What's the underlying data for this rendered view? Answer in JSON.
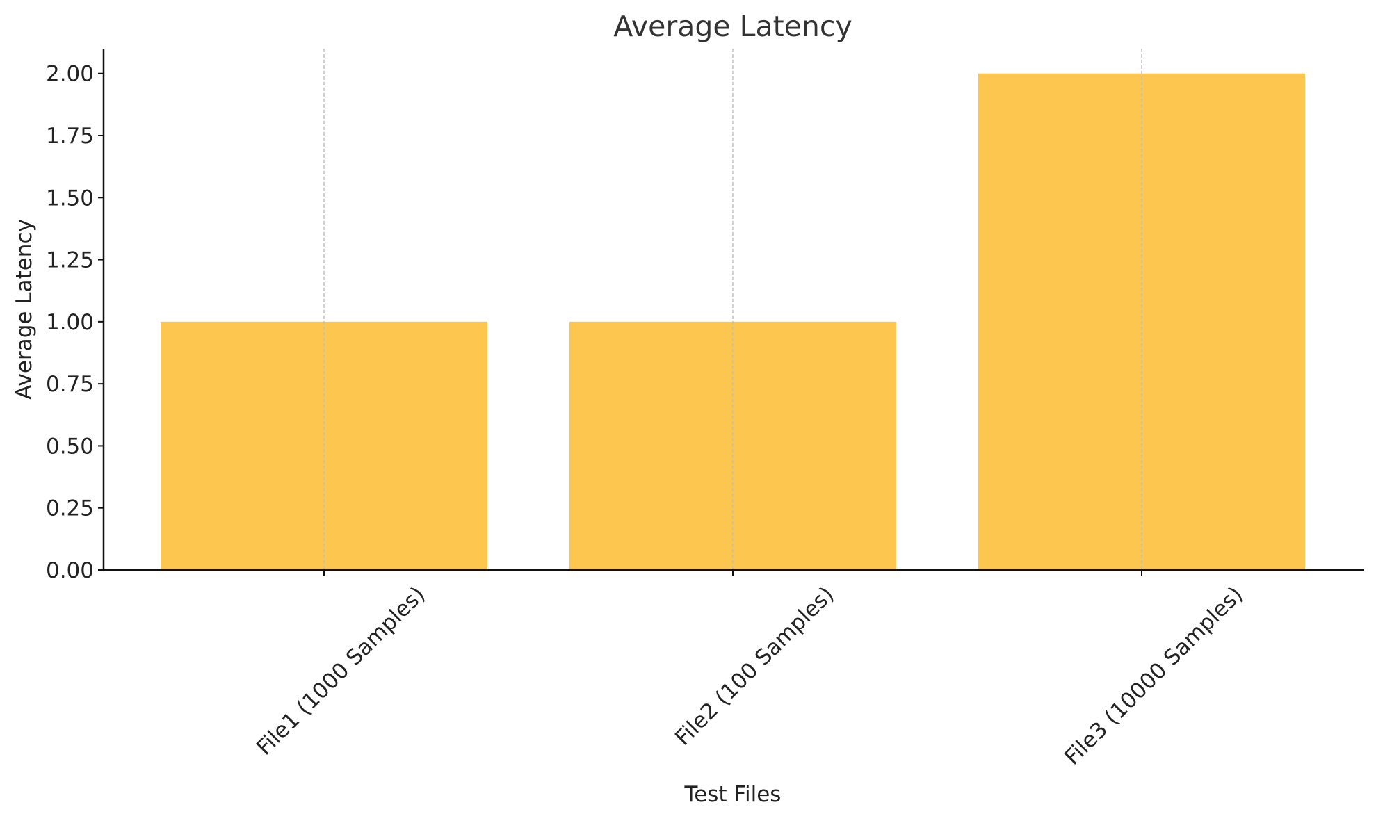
{
  "chart_data": {
    "type": "bar",
    "title": "Average Latency",
    "xlabel": "Test Files",
    "ylabel": "Average Latency",
    "categories": [
      "File1 (1000 Samples)",
      "File2 (100 Samples)",
      "File3 (10000 Samples)"
    ],
    "values": [
      1.0,
      1.0,
      2.0
    ],
    "ylim": [
      0,
      2.1
    ],
    "yticks": [
      "0.00",
      "0.25",
      "0.50",
      "0.75",
      "1.00",
      "1.25",
      "1.50",
      "1.75",
      "2.00"
    ],
    "grid": "vertical dashed lines at category centers",
    "legend": "none",
    "bar_color": "#FDC64E"
  }
}
